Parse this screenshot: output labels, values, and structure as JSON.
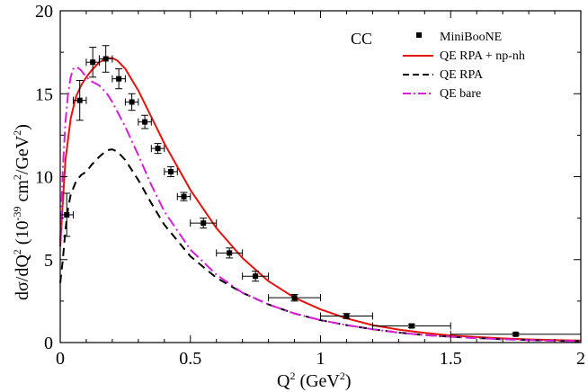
{
  "chart_data": {
    "type": "line",
    "annotation": "CC",
    "xlabel": {
      "base": "Q",
      "sup": "2",
      "unit_open": " (GeV",
      "unit_sup": "2",
      "unit_close": ")"
    },
    "ylabel": {
      "part1": "dσ/dQ",
      "sup1": "2",
      "part2": " (10",
      "sup2": "-39",
      "part3": " cm",
      "sup3": "2",
      "part4": "/GeV",
      "sup4": "2",
      "part5": ")"
    },
    "xlim": [
      0,
      2
    ],
    "ylim": [
      0,
      20
    ],
    "xticks": [
      0,
      0.5,
      1,
      1.5,
      2
    ],
    "xtick_labels": [
      "0",
      "0.5",
      "1",
      "1.5",
      "2"
    ],
    "yticks": [
      0,
      5,
      10,
      15,
      20
    ],
    "ytick_labels": [
      "0",
      "5",
      "10",
      "15",
      "20"
    ],
    "legend": [
      {
        "label": "MiniBooNE",
        "style": "marker",
        "color": "#000000"
      },
      {
        "label": "QE RPA + np-nh",
        "style": "solid",
        "color": "#e8120c"
      },
      {
        "label": "QE RPA",
        "style": "dashed",
        "color": "#000000"
      },
      {
        "label": "QE bare",
        "style": "dashdot",
        "color": "#d81ed8"
      }
    ],
    "data_points": {
      "name": "MiniBooNE",
      "x": [
        0.025,
        0.075,
        0.125,
        0.175,
        0.225,
        0.275,
        0.325,
        0.375,
        0.425,
        0.475,
        0.55,
        0.65,
        0.75,
        0.9,
        1.1,
        1.35,
        1.75
      ],
      "xerr": [
        0.025,
        0.025,
        0.025,
        0.025,
        0.025,
        0.025,
        0.025,
        0.025,
        0.025,
        0.025,
        0.05,
        0.05,
        0.05,
        0.1,
        0.1,
        0.15,
        0.25
      ],
      "y": [
        7.7,
        14.6,
        16.9,
        17.1,
        15.9,
        14.5,
        13.3,
        11.7,
        10.3,
        8.8,
        7.2,
        5.4,
        4.0,
        2.7,
        1.6,
        1.0,
        0.5
      ],
      "yerr": [
        1.3,
        1.2,
        0.9,
        0.8,
        0.6,
        0.5,
        0.4,
        0.3,
        0.3,
        0.25,
        0.3,
        0.3,
        0.3,
        0.2,
        0.15,
        0.1,
        0.08
      ]
    },
    "series": [
      {
        "name": "QE RPA + np-nh",
        "color": "#e8120c",
        "dash": "",
        "x": [
          0,
          0.01,
          0.02,
          0.04,
          0.06,
          0.08,
          0.1,
          0.12,
          0.15,
          0.18,
          0.2,
          0.22,
          0.25,
          0.3,
          0.35,
          0.4,
          0.5,
          0.6,
          0.7,
          0.8,
          0.9,
          1.0,
          1.1,
          1.2,
          1.3,
          1.4,
          1.5,
          1.6,
          1.7,
          1.8,
          1.9,
          2.0
        ],
        "y": [
          5.8,
          8.5,
          11.0,
          13.5,
          14.8,
          15.5,
          16.0,
          16.4,
          16.9,
          17.15,
          17.15,
          17.0,
          16.5,
          15.2,
          13.6,
          12.0,
          9.2,
          6.9,
          5.1,
          3.7,
          2.7,
          2.0,
          1.45,
          1.05,
          0.78,
          0.58,
          0.43,
          0.33,
          0.25,
          0.19,
          0.15,
          0.12
        ]
      },
      {
        "name": "QE RPA",
        "color": "#000000",
        "dash": "9,6",
        "x": [
          0,
          0.01,
          0.02,
          0.03,
          0.04,
          0.06,
          0.08,
          0.1,
          0.12,
          0.15,
          0.18,
          0.2,
          0.22,
          0.25,
          0.3,
          0.35,
          0.4,
          0.5,
          0.6,
          0.7,
          0.8,
          0.9,
          1.0,
          1.1,
          1.2,
          1.3,
          1.4,
          1.5,
          1.6,
          1.7,
          1.8,
          1.9,
          2.0
        ],
        "y": [
          3.6,
          5.0,
          6.8,
          8.1,
          8.9,
          9.7,
          10.1,
          10.3,
          10.7,
          11.2,
          11.6,
          11.65,
          11.5,
          11.0,
          9.8,
          8.4,
          7.1,
          5.2,
          3.9,
          3.0,
          2.3,
          1.75,
          1.35,
          1.05,
          0.8,
          0.6,
          0.45,
          0.35,
          0.27,
          0.2,
          0.15,
          0.11,
          0.08
        ]
      },
      {
        "name": "QE bare",
        "color": "#d81ed8",
        "dash": "12,4,2,4",
        "x": [
          0,
          0.01,
          0.02,
          0.03,
          0.04,
          0.05,
          0.06,
          0.07,
          0.08,
          0.1,
          0.12,
          0.15,
          0.18,
          0.2,
          0.22,
          0.25,
          0.3,
          0.35,
          0.4,
          0.5,
          0.6,
          0.7,
          0.8,
          0.9,
          1.0,
          1.1,
          1.2,
          1.3,
          1.4,
          1.5,
          1.6,
          1.7,
          1.8,
          1.9,
          2.0
        ],
        "y": [
          6.1,
          10.5,
          13.3,
          15.0,
          16.0,
          16.5,
          16.6,
          16.55,
          16.4,
          16.0,
          15.75,
          15.5,
          15.0,
          14.5,
          13.9,
          13.0,
          11.3,
          9.5,
          7.9,
          5.6,
          4.1,
          3.0,
          2.3,
          1.75,
          1.35,
          1.05,
          0.8,
          0.6,
          0.45,
          0.35,
          0.26,
          0.2,
          0.15,
          0.11,
          0.08
        ]
      }
    ]
  }
}
